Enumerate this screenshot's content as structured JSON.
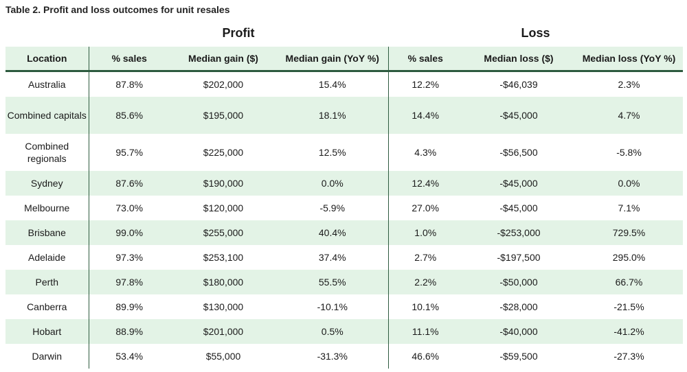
{
  "caption": "Table 2. Profit and loss outcomes for unit resales",
  "groups": {
    "profit": "Profit",
    "loss": "Loss"
  },
  "columns": [
    "Location",
    "% sales",
    "Median gain ($)",
    "Median gain (YoY %)",
    "% sales",
    "Median loss ($)",
    "Median loss (YoY %)"
  ],
  "rows": [
    [
      "Australia",
      "87.8%",
      "$202,000",
      "15.4%",
      "12.2%",
      "-$46,039",
      "2.3%"
    ],
    [
      "Combined capitals",
      "85.6%",
      "$195,000",
      "18.1%",
      "14.4%",
      "-$45,000",
      "4.7%"
    ],
    [
      "Combined regionals",
      "95.7%",
      "$225,000",
      "12.5%",
      "4.3%",
      "-$56,500",
      "-5.8%"
    ],
    [
      "Sydney",
      "87.6%",
      "$190,000",
      "0.0%",
      "12.4%",
      "-$45,000",
      "0.0%"
    ],
    [
      "Melbourne",
      "73.0%",
      "$120,000",
      "-5.9%",
      "27.0%",
      "-$45,000",
      "7.1%"
    ],
    [
      "Brisbane",
      "99.0%",
      "$255,000",
      "40.4%",
      "1.0%",
      "-$253,000",
      "729.5%"
    ],
    [
      "Adelaide",
      "97.3%",
      "$253,100",
      "37.4%",
      "2.7%",
      "-$197,500",
      "295.0%"
    ],
    [
      "Perth",
      "97.8%",
      "$180,000",
      "55.5%",
      "2.2%",
      "-$50,000",
      "66.7%"
    ],
    [
      "Canberra",
      "89.9%",
      "$130,000",
      "-10.1%",
      "10.1%",
      "-$28,000",
      "-21.5%"
    ],
    [
      "Hobart",
      "88.9%",
      "$201,000",
      "0.5%",
      "11.1%",
      "-$40,000",
      "-41.2%"
    ],
    [
      "Darwin",
      "53.4%",
      "$55,000",
      "-31.3%",
      "46.6%",
      "-$59,500",
      "-27.3%"
    ]
  ]
}
